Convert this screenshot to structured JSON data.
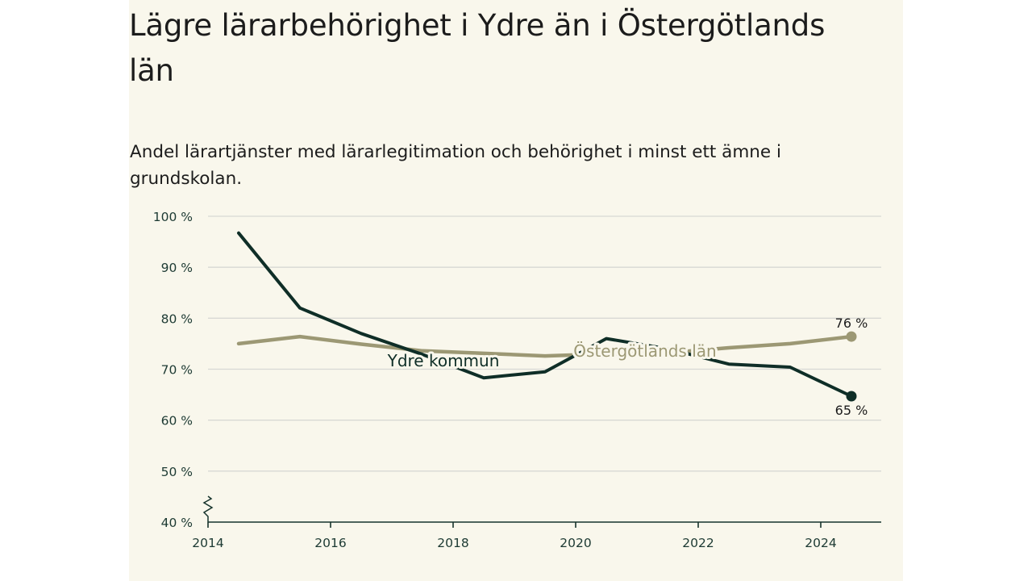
{
  "title": "Lägre lärarbehörighet i Ydre än i Östergötlands län",
  "subtitle": "Andel lärartjänster med lärarlegitimation och behörighet i minst ett ämne i grundskolan.",
  "colors": {
    "ydre": "#0f2e27",
    "lan": "#9c9874",
    "background": "#f9f7ec"
  },
  "chart_data": {
    "type": "line",
    "xlim": [
      2014,
      2025
    ],
    "ylim": [
      40,
      100
    ],
    "x_ticks": [
      "2014",
      "2016",
      "2018",
      "2020",
      "2022",
      "2024"
    ],
    "y_ticks": [
      "40 %",
      "50 %",
      "60 %",
      "70 %",
      "80 %",
      "90 %",
      "100 %"
    ],
    "axis_break": true,
    "grid": true,
    "x": [
      2014.5,
      2015.5,
      2016.5,
      2017.5,
      2018.5,
      2019.5,
      2020.5,
      2021.5,
      2022.5,
      2023.5,
      2024.5
    ],
    "series": [
      {
        "name": "Ydre kommun",
        "color": "#0f2e27",
        "values": [
          96.7,
          82.0,
          77.0,
          72.9,
          68.3,
          69.5,
          76.0,
          74.0,
          71.0,
          70.4,
          64.7
        ],
        "end_label": "65 %"
      },
      {
        "name": "Östergötlands län",
        "color": "#9c9874",
        "values": [
          75.0,
          76.4,
          74.9,
          73.6,
          73.1,
          72.6,
          73.0,
          73.2,
          74.2,
          75.0,
          76.4
        ],
        "end_label": "76 %"
      }
    ]
  }
}
